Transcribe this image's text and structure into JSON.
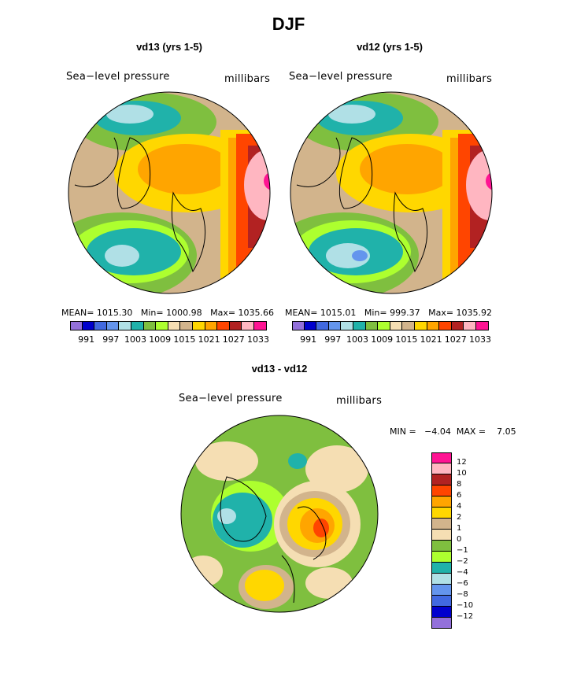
{
  "title": "DJF",
  "panels": [
    {
      "title": "vd13 (yrs 1-5)",
      "field_label": "Sea−level pressure",
      "unit_label": "millibars",
      "stats": "MEAN= 1015.30   Min= 1000.98   Max= 1035.66"
    },
    {
      "title": "vd12 (yrs 1-5)",
      "field_label": "Sea−level pressure",
      "unit_label": "millibars",
      "stats": "MEAN= 1015.01   Min= 999.37   Max= 1035.92"
    }
  ],
  "colorbar": {
    "colors": [
      "#9370db",
      "#0000cd",
      "#4169e1",
      "#6495ed",
      "#b0e0e6",
      "#20b2aa",
      "#7fbf3f",
      "#adff2f",
      "#f5deb3",
      "#d2b48c",
      "#ffd700",
      "#ffa500",
      "#ff4500",
      "#b22222",
      "#ffb6c1",
      "#ff1493"
    ],
    "labels": [
      "991",
      "997",
      "1003",
      "1009",
      "1015",
      "1021",
      "1027",
      "1033"
    ]
  },
  "diff_panel": {
    "title": "vd13 - vd12",
    "field_label": "Sea−level pressure",
    "unit_label": "millibars",
    "stats": "MIN =   −4.04  MAX =    7.05"
  },
  "diff_colorbar": {
    "colors": [
      "#ff1493",
      "#ffb6c1",
      "#b22222",
      "#ff4500",
      "#ffa500",
      "#ffd700",
      "#d2b48c",
      "#f5deb3",
      "#7fbf3f",
      "#adff2f",
      "#20b2aa",
      "#b0e0e6",
      "#6495ed",
      "#4169e1",
      "#0000cd",
      "#9370db"
    ],
    "labels": [
      "12",
      "10",
      "8",
      "6",
      "4",
      "2",
      "1",
      "0",
      "−1",
      "−2",
      "−4",
      "−6",
      "−8",
      "−10",
      "−12"
    ]
  },
  "icons": [
    "polar-projection-map-icon"
  ]
}
